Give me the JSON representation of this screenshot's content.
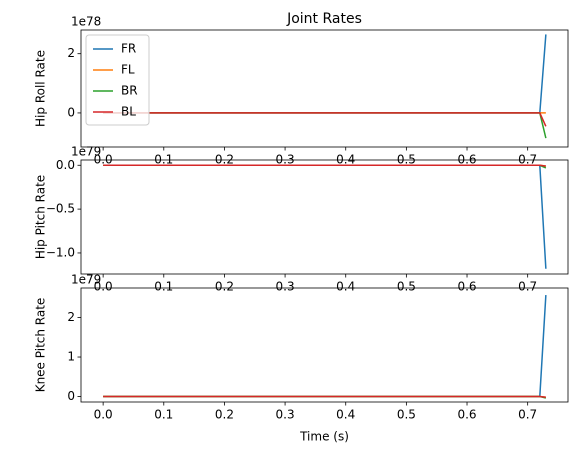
{
  "chart_data": [
    {
      "type": "line",
      "title": "Joint Rates",
      "ylabel": "Hip Roll Rate",
      "offset_label": "1e78",
      "x": [
        0,
        0.72,
        0.73
      ],
      "series": [
        {
          "name": "FR",
          "color": "#1f77b4",
          "values": [
            0,
            0,
            2.65
          ]
        },
        {
          "name": "FL",
          "color": "#ff7f0e",
          "values": [
            0,
            0,
            0
          ]
        },
        {
          "name": "BR",
          "color": "#2ca02c",
          "values": [
            0,
            0,
            -0.85
          ]
        },
        {
          "name": "BL",
          "color": "#d62728",
          "values": [
            0,
            0,
            -0.45
          ]
        }
      ],
      "xlim": [
        -0.0365,
        0.7665
      ],
      "xticks": [
        {
          "value": 0,
          "label": "0.0"
        },
        0.1,
        0.2,
        0.3,
        0.4,
        0.5,
        0.6,
        0.7
      ],
      "ylim": [
        -1.15,
        2.8
      ],
      "yticks": [
        0,
        2
      ],
      "legend": "upper left"
    },
    {
      "type": "line",
      "ylabel": "Hip Pitch Rate",
      "offset_label": "1e79",
      "x": [
        0,
        0.72,
        0.73
      ],
      "series": [
        {
          "name": "FR",
          "color": "#1f77b4",
          "values": [
            0,
            0,
            -1.18
          ]
        },
        {
          "name": "FL",
          "color": "#ff7f0e",
          "values": [
            0,
            0,
            -0.01
          ]
        },
        {
          "name": "BR",
          "color": "#2ca02c",
          "values": [
            0,
            0,
            -0.03
          ]
        },
        {
          "name": "BL",
          "color": "#d62728",
          "values": [
            0,
            0,
            -0.01
          ]
        }
      ],
      "xlim": [
        -0.0365,
        0.7665
      ],
      "xticks": [
        {
          "value": 0,
          "label": "0.0"
        },
        0.1,
        0.2,
        0.3,
        0.4,
        0.5,
        0.6,
        0.7
      ],
      "ylim": [
        -1.24,
        0.06
      ],
      "yticks": [
        {
          "value": -1,
          "label": "−1.0"
        },
        {
          "value": -0.5,
          "label": "−0.5"
        },
        {
          "value": 0,
          "label": "0.0"
        }
      ]
    },
    {
      "type": "line",
      "ylabel": "Knee Pitch Rate",
      "xlabel": "Time (s)",
      "offset_label": "1e79",
      "x": [
        0,
        0.72,
        0.73
      ],
      "series": [
        {
          "name": "FR",
          "color": "#1f77b4",
          "values": [
            0,
            0,
            2.57
          ]
        },
        {
          "name": "FL",
          "color": "#ff7f0e",
          "values": [
            0,
            0,
            -0.02
          ]
        },
        {
          "name": "BR",
          "color": "#2ca02c",
          "values": [
            0,
            0,
            -0.04
          ]
        },
        {
          "name": "BL",
          "color": "#d62728",
          "values": [
            0,
            0,
            -0.02
          ]
        }
      ],
      "xlim": [
        -0.0365,
        0.7665
      ],
      "xticks": [
        {
          "value": 0,
          "label": "0.0"
        },
        0.1,
        0.2,
        0.3,
        0.4,
        0.5,
        0.6,
        0.7
      ],
      "ylim": [
        -0.14,
        2.75
      ],
      "yticks": [
        0,
        1,
        2
      ]
    }
  ]
}
